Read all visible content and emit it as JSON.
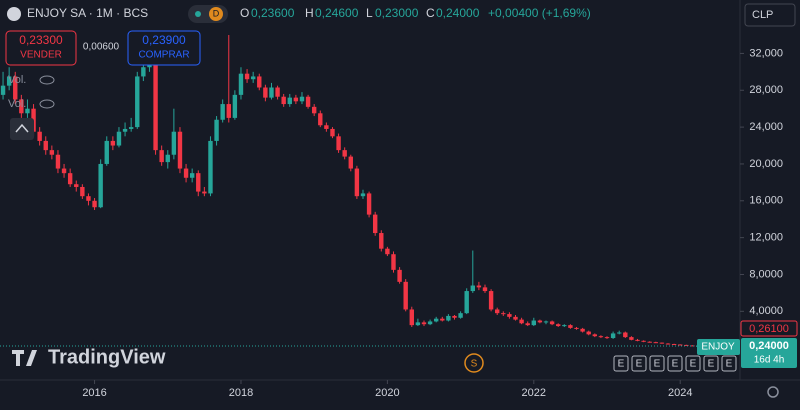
{
  "header": {
    "symbol": "ENJOY SA · 1M · BCS",
    "badge": "D",
    "ohlc_labels": [
      "O",
      "H",
      "L",
      "C"
    ],
    "ohlc_values": [
      "0,23600",
      "0,24600",
      "0,23000",
      "0,24000"
    ],
    "change": "+0,00400 (+1,69%)",
    "currency": "CLP"
  },
  "trade": {
    "sell_price": "0,23300",
    "sell_label": "VENDER",
    "spread": "0,00600",
    "buy_price": "0,23900",
    "buy_label": "COMPRAR"
  },
  "indicators": [
    "Vol.",
    "Vol."
  ],
  "price_tags": {
    "high_tag": "0,26100",
    "symbol": "ENJOY",
    "last": "0,24000",
    "countdown": "16d 4h"
  },
  "brand": "TradingView",
  "event_marker": "S",
  "event_icons": [
    "E",
    "E",
    "E",
    "E",
    "E",
    "E",
    "E"
  ],
  "chart_data": {
    "type": "candlestick",
    "up_color": "#26a69a",
    "down_color": "#f23645",
    "xlim": [
      -0.5,
      120.8
    ],
    "ylim": [
      -4,
      37.8
    ],
    "xticks": [
      {
        "value": 15,
        "label": "2016"
      },
      {
        "value": 39,
        "label": "2018"
      },
      {
        "value": 63,
        "label": "2020"
      },
      {
        "value": 87,
        "label": "2022"
      },
      {
        "value": 111,
        "label": "2024"
      }
    ],
    "yticks": [
      {
        "value": 4,
        "label": "4,0000"
      },
      {
        "value": 8,
        "label": "8,0000"
      },
      {
        "value": 12,
        "label": "12,000"
      },
      {
        "value": 16,
        "label": "16,000"
      },
      {
        "value": 20,
        "label": "20,000"
      },
      {
        "value": 24,
        "label": "24,000"
      },
      {
        "value": 28,
        "label": "28,000"
      },
      {
        "value": 32,
        "label": "32,000"
      }
    ],
    "ohlc": [
      [
        27.5,
        30,
        27,
        28.5
      ],
      [
        28.5,
        30.5,
        28,
        29.5
      ],
      [
        29.5,
        30,
        26.5,
        27
      ],
      [
        27,
        27.5,
        25,
        25.5
      ],
      [
        25.5,
        27,
        25,
        26
      ],
      [
        26,
        26.5,
        23,
        23.5
      ],
      [
        23.5,
        24,
        22,
        22.5
      ],
      [
        22.5,
        23,
        21,
        21.5
      ],
      [
        21.5,
        22,
        20.5,
        21
      ],
      [
        21,
        21.5,
        19,
        19.5
      ],
      [
        19.5,
        20,
        18.5,
        19
      ],
      [
        19,
        19.5,
        17.5,
        17.8
      ],
      [
        17.8,
        18.2,
        17,
        17.5
      ],
      [
        17.5,
        17.8,
        16.2,
        16.5
      ],
      [
        16.5,
        16.8,
        15.5,
        16
      ],
      [
        16,
        16.3,
        15,
        15.3
      ],
      [
        15.3,
        20.5,
        15.2,
        20
      ],
      [
        20,
        23,
        19.8,
        22.5
      ],
      [
        22.5,
        23,
        21.5,
        22
      ],
      [
        22,
        24,
        21.8,
        23.5
      ],
      [
        23.5,
        24.5,
        23,
        23.8
      ],
      [
        23.8,
        25,
        23.5,
        24
      ],
      [
        24,
        30,
        23.8,
        29.5
      ],
      [
        29.5,
        31.5,
        29,
        30.5
      ],
      [
        30.5,
        33.5,
        30,
        32
      ],
      [
        32,
        32.5,
        21,
        21.5
      ],
      [
        21.5,
        22,
        19.8,
        20.2
      ],
      [
        20.2,
        21.5,
        19.5,
        21
      ],
      [
        21,
        26,
        20.5,
        23.5
      ],
      [
        23.5,
        24,
        19,
        19.5
      ],
      [
        19.5,
        20,
        18,
        18.5
      ],
      [
        18.5,
        19.5,
        18,
        19
      ],
      [
        19,
        19.3,
        16.5,
        17
      ],
      [
        17,
        17.5,
        16.5,
        16.8
      ],
      [
        16.8,
        23,
        16.5,
        22.5
      ],
      [
        22.5,
        25.2,
        22,
        24.8
      ],
      [
        24.8,
        27,
        24.5,
        26.5
      ],
      [
        26.5,
        34,
        24.5,
        25
      ],
      [
        25,
        28,
        24.8,
        27.5
      ],
      [
        27.5,
        30.5,
        27,
        29.8
      ],
      [
        29.8,
        30.3,
        28.8,
        29.2
      ],
      [
        29.2,
        30,
        28.8,
        29.5
      ],
      [
        29.5,
        29.8,
        28,
        28.3
      ],
      [
        28.3,
        28.6,
        26.8,
        27.2
      ],
      [
        27.2,
        28.8,
        27,
        28.3
      ],
      [
        28.3,
        28.5,
        27,
        27.3
      ],
      [
        27.3,
        27.6,
        26.2,
        26.5
      ],
      [
        26.5,
        27.6,
        26.2,
        27.2
      ],
      [
        27.2,
        27.5,
        26.5,
        26.8
      ],
      [
        26.8,
        27.8,
        26.5,
        27.3
      ],
      [
        27.3,
        27.5,
        26,
        26.2
      ],
      [
        26.2,
        26.5,
        25.2,
        25.5
      ],
      [
        25.5,
        25.8,
        24,
        24.2
      ],
      [
        24.2,
        24.5,
        23.5,
        23.8
      ],
      [
        23.8,
        24,
        22.8,
        23
      ],
      [
        23,
        23.3,
        21.2,
        21.5
      ],
      [
        21.5,
        21.8,
        20.5,
        20.8
      ],
      [
        20.8,
        21,
        19.2,
        19.5
      ],
      [
        19.5,
        19.8,
        16.2,
        16.5
      ],
      [
        16.5,
        17.2,
        16.2,
        16.8
      ],
      [
        16.8,
        17,
        14.2,
        14.5
      ],
      [
        14.5,
        14.8,
        12.2,
        12.5
      ],
      [
        12.5,
        12.8,
        10.5,
        10.8
      ],
      [
        10.8,
        11,
        10,
        10.2
      ],
      [
        10.2,
        10.5,
        8.2,
        8.5
      ],
      [
        8.5,
        8.8,
        7,
        7.2
      ],
      [
        7.2,
        7.5,
        4,
        4.2
      ],
      [
        4.2,
        4.5,
        2.3,
        2.5
      ],
      [
        2.5,
        3.2,
        2.4,
        2.8
      ],
      [
        2.8,
        3,
        2.4,
        2.6
      ],
      [
        2.6,
        3.1,
        2.5,
        2.9
      ],
      [
        2.9,
        3.4,
        2.8,
        3.2
      ],
      [
        3.2,
        3.4,
        2.9,
        3
      ],
      [
        3,
        3.7,
        2.9,
        3.5
      ],
      [
        3.5,
        3.6,
        3.1,
        3.3
      ],
      [
        3.3,
        4,
        3.2,
        3.8
      ],
      [
        3.8,
        6.5,
        3.7,
        6.2
      ],
      [
        6.2,
        10.6,
        6,
        6.8
      ],
      [
        6.8,
        7.2,
        6.3,
        6.6
      ],
      [
        6.6,
        6.9,
        6,
        6.2
      ],
      [
        6.2,
        6.4,
        4,
        4.2
      ],
      [
        4.2,
        4.4,
        3.6,
        3.8
      ],
      [
        3.8,
        4,
        3.5,
        3.7
      ],
      [
        3.7,
        3.9,
        3.2,
        3.4
      ],
      [
        3.4,
        3.6,
        3,
        3.1
      ],
      [
        3.1,
        3.3,
        2.6,
        2.7
      ],
      [
        2.7,
        2.9,
        2.4,
        2.5
      ],
      [
        2.5,
        3.3,
        2.4,
        3
      ],
      [
        3,
        3.1,
        2.7,
        2.8
      ],
      [
        2.8,
        3,
        2.6,
        2.9
      ],
      [
        2.9,
        3,
        2.5,
        2.6
      ],
      [
        2.6,
        2.7,
        2.3,
        2.4
      ],
      [
        2.4,
        2.6,
        2.3,
        2.5
      ],
      [
        2.5,
        2.6,
        2.1,
        2.2
      ],
      [
        2.2,
        2.3,
        2,
        2.1
      ],
      [
        2.1,
        2.2,
        1.7,
        1.8
      ],
      [
        1.8,
        1.9,
        1.4,
        1.5
      ],
      [
        1.5,
        1.6,
        1.2,
        1.3
      ],
      [
        1.3,
        1.4,
        1.1,
        1.2
      ],
      [
        1.2,
        1.3,
        1,
        1.1
      ],
      [
        1.1,
        1.8,
        1,
        1.6
      ],
      [
        1.6,
        1.9,
        1.5,
        1.7
      ],
      [
        1.7,
        1.8,
        1.1,
        1.2
      ],
      [
        1.2,
        1.3,
        0.85,
        0.9
      ],
      [
        0.9,
        1,
        0.75,
        0.8
      ],
      [
        0.8,
        0.85,
        0.65,
        0.7
      ],
      [
        0.7,
        0.75,
        0.6,
        0.65
      ],
      [
        0.65,
        0.7,
        0.55,
        0.6
      ],
      [
        0.6,
        0.62,
        0.48,
        0.5
      ],
      [
        0.5,
        0.55,
        0.42,
        0.45
      ],
      [
        0.45,
        0.48,
        0.38,
        0.4
      ],
      [
        0.4,
        0.42,
        0.33,
        0.35
      ],
      [
        0.35,
        0.37,
        0.28,
        0.3
      ],
      [
        0.3,
        0.32,
        0.23,
        0.236
      ],
      [
        0.236,
        0.246,
        0.23,
        0.24
      ]
    ]
  }
}
